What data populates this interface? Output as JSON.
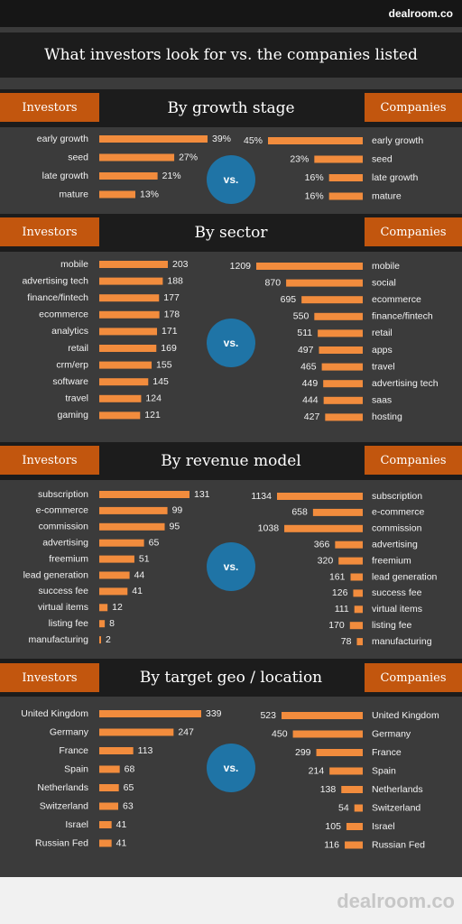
{
  "brand": "dealroom.co",
  "title": "What investors look for vs. the companies listed",
  "labels": {
    "investors": "Investors",
    "companies": "Companies",
    "vs": "vs."
  },
  "colors": {
    "bar": "#f28c3d",
    "tag": "#c2560e",
    "vs_circle": "#1f74a6",
    "background": "#3b3b3b",
    "band": "#1c1c1c"
  },
  "sections": [
    {
      "title": "By growth stage"
    },
    {
      "title": "By sector"
    },
    {
      "title": "By revenue model"
    },
    {
      "title": "By target geo / location"
    }
  ],
  "chart_data": [
    {
      "type": "bar",
      "title": "By growth stage",
      "series": [
        {
          "name": "Investors",
          "categories": [
            "early growth",
            "seed",
            "late growth",
            "mature"
          ],
          "values": [
            39,
            27,
            21,
            13
          ],
          "value_labels": [
            "39%",
            "27%",
            "21%",
            "13%"
          ]
        },
        {
          "name": "Companies",
          "categories": [
            "early growth",
            "seed",
            "late growth",
            "mature"
          ],
          "values": [
            45,
            23,
            16,
            16
          ],
          "value_labels": [
            "45%",
            "23%",
            "16%",
            "16%"
          ]
        }
      ]
    },
    {
      "type": "bar",
      "title": "By sector",
      "series": [
        {
          "name": "Investors",
          "categories": [
            "mobile",
            "advertising tech",
            "finance/fintech",
            "ecommerce",
            "analytics",
            "retail",
            "crm/erp",
            "software",
            "travel",
            "gaming"
          ],
          "values": [
            203,
            188,
            177,
            178,
            171,
            169,
            155,
            145,
            124,
            121
          ],
          "value_labels": [
            "203",
            "188",
            "177",
            "178",
            "171",
            "169",
            "155",
            "145",
            "124",
            "121"
          ]
        },
        {
          "name": "Companies",
          "categories": [
            "mobile",
            "social",
            "ecommerce",
            "finance/fintech",
            "retail",
            "apps",
            "travel",
            "advertising tech",
            "saas",
            "hosting"
          ],
          "values": [
            1209,
            870,
            695,
            550,
            511,
            497,
            465,
            449,
            444,
            427
          ],
          "value_labels": [
            "1209",
            "870",
            "695",
            "550",
            "511",
            "497",
            "465",
            "449",
            "444",
            "427"
          ]
        }
      ]
    },
    {
      "type": "bar",
      "title": "By revenue model",
      "series": [
        {
          "name": "Investors",
          "categories": [
            "subscription",
            "e-commerce",
            "commission",
            "advertising",
            "freemium",
            "lead generation",
            "success fee",
            "virtual items",
            "listing fee",
            "manufacturing"
          ],
          "values": [
            131,
            99,
            95,
            65,
            51,
            44,
            41,
            12,
            8,
            2
          ],
          "value_labels": [
            "131",
            "99",
            "95",
            "65",
            "51",
            "44",
            "41",
            "12",
            "8",
            "2"
          ]
        },
        {
          "name": "Companies",
          "categories": [
            "subscription",
            "e-commerce",
            "commission",
            "advertising",
            "freemium",
            "lead generation",
            "success fee",
            "virtual items",
            "listing fee",
            "manufacturing"
          ],
          "values": [
            1134,
            658,
            1038,
            366,
            320,
            161,
            126,
            111,
            170,
            78
          ],
          "value_labels": [
            "1134",
            "658",
            "1038",
            "366",
            "320",
            "161",
            "126",
            "111",
            "170",
            "78"
          ]
        }
      ]
    },
    {
      "type": "bar",
      "title": "By target geo / location",
      "series": [
        {
          "name": "Investors",
          "categories": [
            "United Kingdom",
            "Germany",
            "France",
            "Spain",
            "Netherlands",
            "Switzerland",
            "Israel",
            "Russian Fed"
          ],
          "values": [
            339,
            247,
            113,
            68,
            65,
            63,
            41,
            41
          ],
          "value_labels": [
            "339",
            "247",
            "113",
            "68",
            "65",
            "63",
            "41",
            "41"
          ]
        },
        {
          "name": "Companies",
          "categories": [
            "United Kingdom",
            "Germany",
            "France",
            "Spain",
            "Netherlands",
            "Switzerland",
            "Israel",
            "Russian Fed"
          ],
          "values": [
            523,
            450,
            299,
            214,
            138,
            54,
            105,
            116
          ],
          "value_labels": [
            "523",
            "450",
            "299",
            "214",
            "138",
            "54",
            "105",
            "116"
          ]
        }
      ]
    }
  ]
}
